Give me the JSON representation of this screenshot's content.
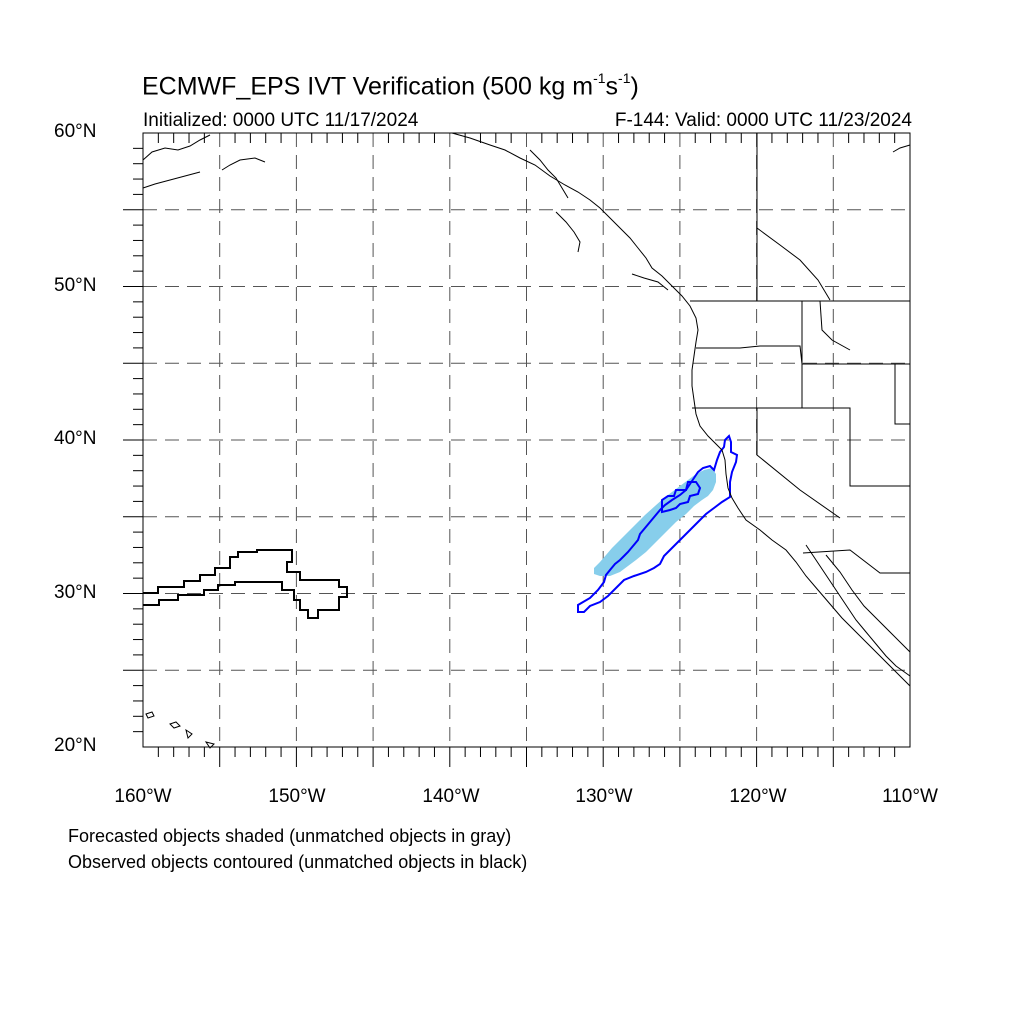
{
  "header": {
    "title_text": "ECMWF_EPS IVT Verification (500 kg m",
    "title_sup1": "-1",
    "title_mid": "s",
    "title_sup2": "-1",
    "title_close": ")",
    "initialized": "Initialized: 0000 UTC 11/17/2024",
    "valid": "F-144: Valid: 0000 UTC 11/23/2024"
  },
  "axes": {
    "lat_labels": [
      "60°N",
      "50°N",
      "40°N",
      "30°N",
      "20°N"
    ],
    "lon_labels": [
      "160°W",
      "150°W",
      "140°W",
      "130°W",
      "120°W",
      "110°W"
    ]
  },
  "footer": {
    "line1": "Forecasted objects shaded (unmatched objects in gray)",
    "line2": "Observed objects contoured (unmatched objects in black)"
  },
  "map": {
    "lon_range": [
      -160,
      -110
    ],
    "lat_range": [
      20,
      60
    ],
    "grid_lon_step": 5,
    "grid_lat_step": 5,
    "colors": {
      "forecast_matched": "#87ceeb",
      "observed_matched": "#0000ff",
      "observed_unmatched": "#000000",
      "grid": "#555555",
      "coast": "#000000"
    }
  }
}
